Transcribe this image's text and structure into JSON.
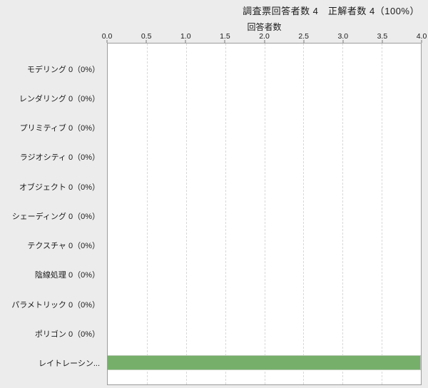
{
  "header": {
    "title": "調査票回答者数 4　正解者数 4（100%）"
  },
  "chart": {
    "axis_title": "回答者数",
    "tick_labels": [
      "0.0",
      "0.5",
      "1.0",
      "1.5",
      "2.0",
      "2.5",
      "3.0",
      "3.5",
      "4.0"
    ],
    "rows": [
      {
        "label": "モデリング 0（0%）"
      },
      {
        "label": "レンダリング 0（0%）"
      },
      {
        "label": "プリミティブ 0（0%）"
      },
      {
        "label": "ラジオシティ 0（0%）"
      },
      {
        "label": "オブジェクト 0（0%）"
      },
      {
        "label": "シェーディング 0（0%）"
      },
      {
        "label": "テクスチャ 0（0%）"
      },
      {
        "label": "陰線処理 0（0%）"
      },
      {
        "label": "パラメトリック 0（0%）"
      },
      {
        "label": "ポリゴン 0（0%）"
      },
      {
        "label": "レイトレーシン..."
      }
    ]
  },
  "chart_data": {
    "type": "bar",
    "orientation": "horizontal",
    "title": "回答者数",
    "header_text": "調査票回答者数 4　正解者数 4（100%）",
    "categories": [
      "モデリング",
      "レンダリング",
      "プリミティブ",
      "ラジオシティ",
      "オブジェクト",
      "シェーディング",
      "テクスチャ",
      "陰線処理",
      "パラメトリック",
      "ポリゴン",
      "レイトレーシング"
    ],
    "values": [
      0,
      0,
      0,
      0,
      0,
      0,
      0,
      0,
      0,
      0,
      4
    ],
    "category_value_labels": [
      "0（0%）",
      "0（0%）",
      "0（0%）",
      "0（0%）",
      "0（0%）",
      "0（0%）",
      "0（0%）",
      "0（0%）",
      "0（0%）",
      "0（0%）",
      ""
    ],
    "xlabel": "回答者数",
    "ylabel": "",
    "xlim": [
      0,
      4
    ],
    "xticks": [
      0.0,
      0.5,
      1.0,
      1.5,
      2.0,
      2.5,
      3.0,
      3.5,
      4.0
    ],
    "grid": "vertical-dashed",
    "legend": "none",
    "bar_color": "#75af6a",
    "colors": {
      "page_bg": "#ececec",
      "plot_bg": "#ffffff",
      "plot_border": "#9c9c9c",
      "gridline": "#d8d8d8",
      "bar_border": "#b9c9b4",
      "text": "#1a1a1a"
    }
  }
}
